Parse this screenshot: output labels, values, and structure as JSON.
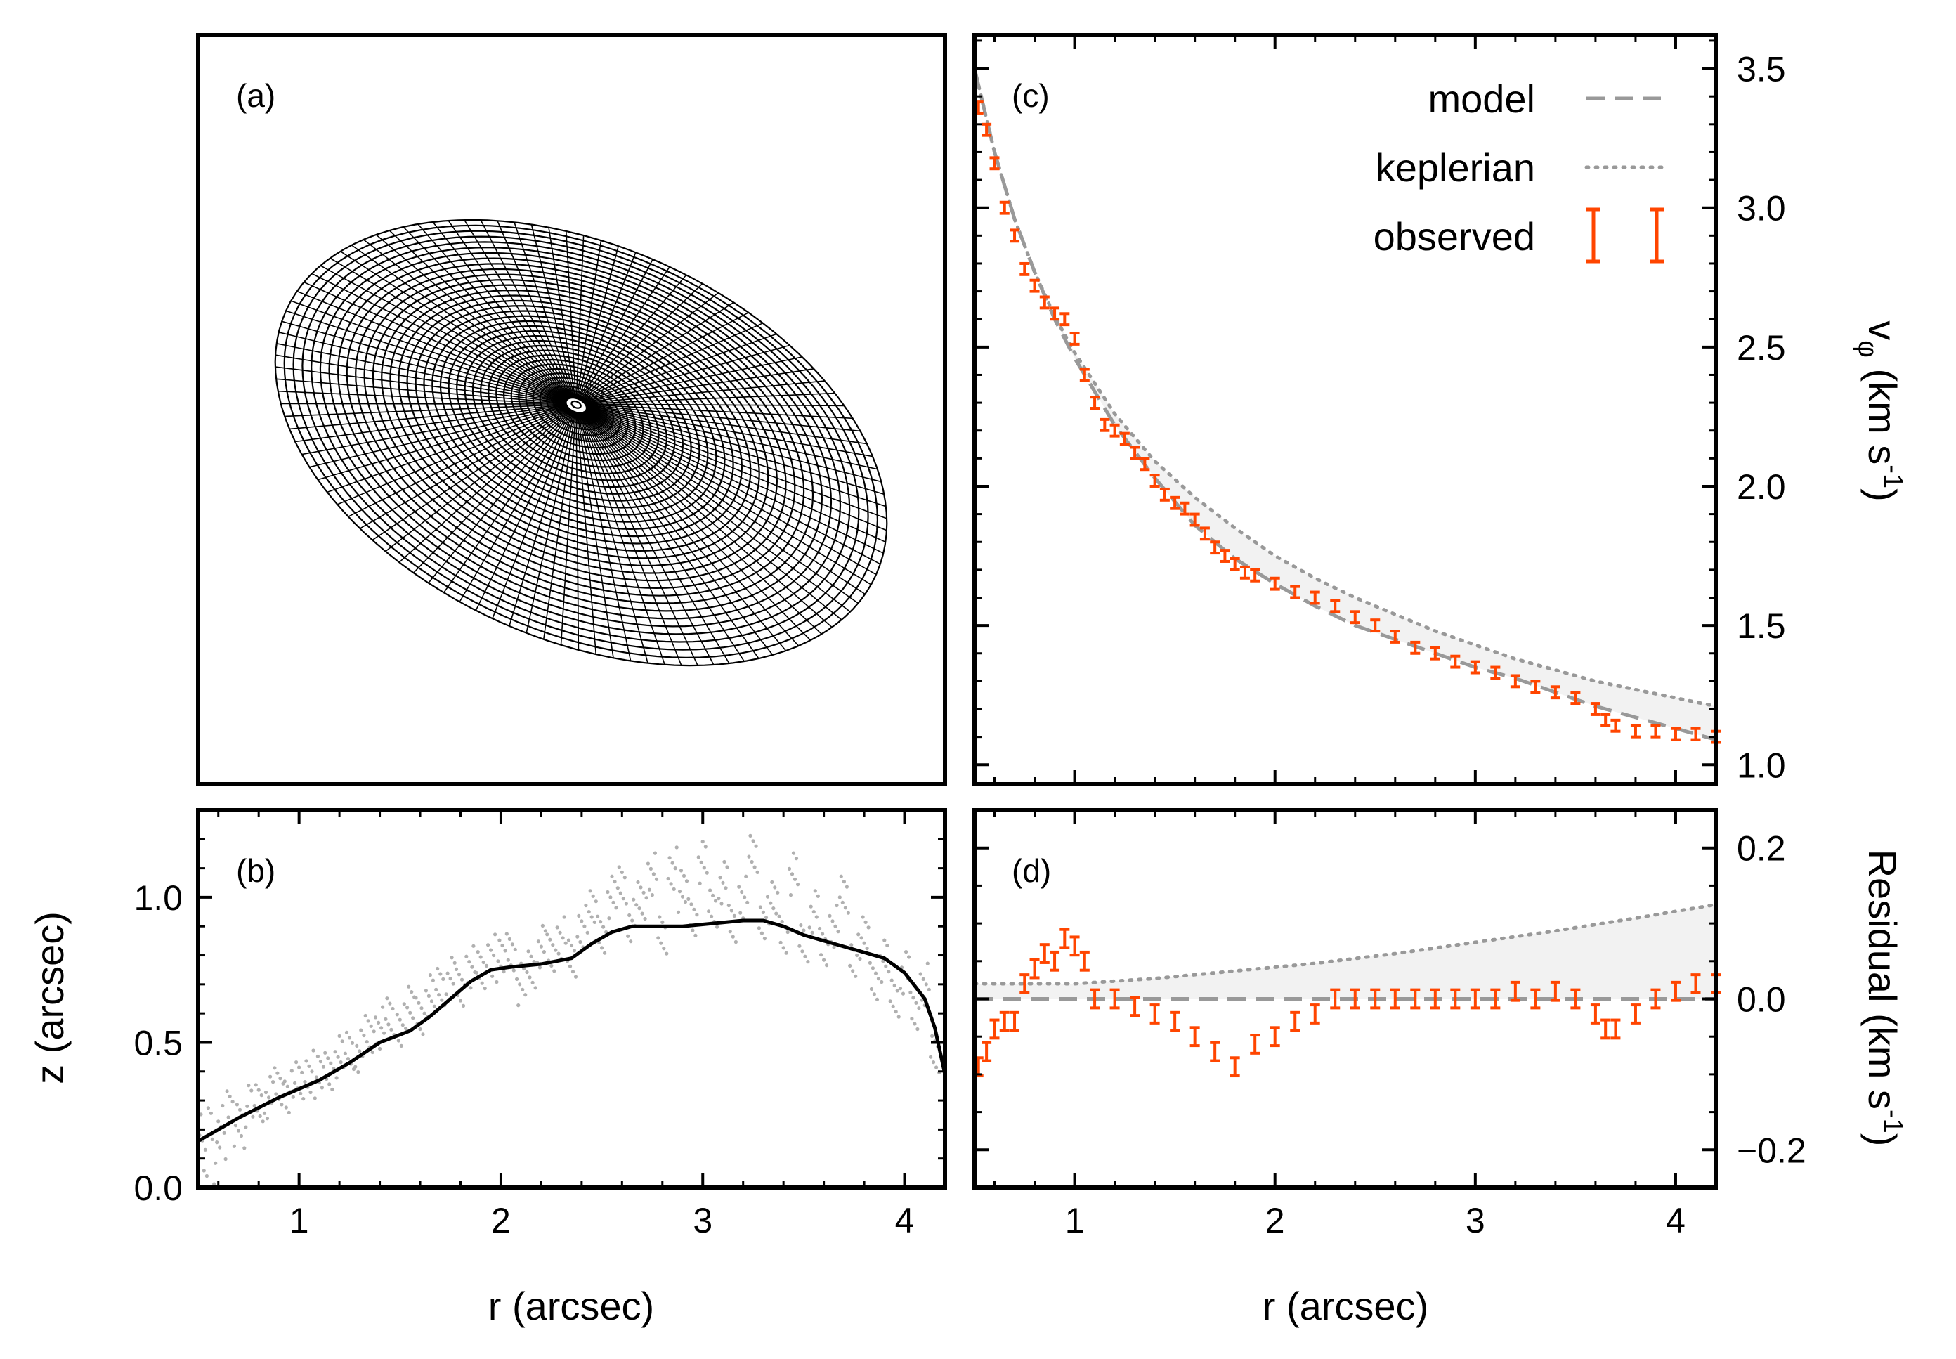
{
  "colors": {
    "observed": "#ff4500",
    "model": "#999999",
    "keplerian": "#999999",
    "points": "#b0b0b0",
    "shade": "#f2f2f2",
    "surface": "#000000"
  },
  "chart_data": [
    {
      "panel": "a",
      "type": "other",
      "tag": "(a)",
      "description_visible": "3D wireframe surface of inclined disk"
    },
    {
      "panel": "b",
      "type": "scatter",
      "tag": "(b)",
      "xlabel": "r (arcsec)",
      "ylabel": "z (arcsec)",
      "xlim": [
        0.5,
        4.2
      ],
      "ylim": [
        0.0,
        1.3
      ],
      "xticks": [
        "1",
        "2",
        "3",
        "4"
      ],
      "yticks": [
        "0.0",
        "0.5",
        "1.0"
      ],
      "series": [
        {
          "kind": "line",
          "x": [
            0.5,
            0.7,
            0.9,
            1.1,
            1.25,
            1.4,
            1.55,
            1.65,
            1.75,
            1.85,
            1.95,
            2.05,
            2.2,
            2.35,
            2.45,
            2.55,
            2.65,
            2.75,
            2.9,
            3.05,
            3.2,
            3.3,
            3.4,
            3.5,
            3.6,
            3.7,
            3.8,
            3.9,
            4.0,
            4.1,
            4.15,
            4.2
          ],
          "y": [
            0.16,
            0.24,
            0.31,
            0.37,
            0.43,
            0.5,
            0.54,
            0.59,
            0.65,
            0.71,
            0.75,
            0.76,
            0.77,
            0.79,
            0.84,
            0.88,
            0.9,
            0.9,
            0.9,
            0.91,
            0.92,
            0.92,
            0.9,
            0.87,
            0.85,
            0.83,
            0.81,
            0.79,
            0.74,
            0.65,
            0.55,
            0.39
          ]
        },
        {
          "kind": "points",
          "x": [
            0.5,
            0.55,
            0.6,
            0.65,
            0.7,
            0.75,
            0.8,
            0.85,
            0.9,
            0.95,
            1.0,
            1.05,
            1.1,
            1.15,
            1.2,
            1.25,
            1.3,
            1.35,
            1.4,
            1.45,
            1.5,
            1.55,
            1.6,
            1.65,
            1.7,
            1.75,
            1.8,
            1.85,
            1.9,
            1.95,
            2.0,
            2.05,
            2.1,
            2.15,
            2.2,
            2.25,
            2.3,
            2.35,
            2.4,
            2.45,
            2.5,
            2.55,
            2.6,
            2.65,
            2.7,
            2.75,
            2.8,
            2.85,
            2.9,
            2.95,
            3.0,
            3.05,
            3.1,
            3.15,
            3.2,
            3.25,
            3.3,
            3.35,
            3.4,
            3.45,
            3.5,
            3.55,
            3.6,
            3.65,
            3.7,
            3.75,
            3.8,
            3.85,
            3.9,
            3.95,
            4.0,
            4.05,
            4.1,
            4.15
          ],
          "y": [
            0.18,
            0.22,
            0.21,
            0.26,
            0.25,
            0.28,
            0.3,
            0.31,
            0.34,
            0.33,
            0.36,
            0.4,
            0.38,
            0.41,
            0.45,
            0.48,
            0.47,
            0.52,
            0.55,
            0.58,
            0.56,
            0.62,
            0.6,
            0.66,
            0.7,
            0.72,
            0.68,
            0.76,
            0.74,
            0.8,
            0.78,
            0.82,
            0.7,
            0.76,
            0.83,
            0.8,
            0.86,
            0.78,
            0.9,
            0.95,
            0.88,
            1.0,
            1.05,
            0.92,
            0.98,
            1.08,
            0.86,
            1.1,
            1.02,
            0.94,
            1.12,
            0.97,
            1.05,
            0.9,
            1.0,
            1.14,
            0.93,
            0.98,
            0.88,
            1.08,
            0.85,
            0.95,
            0.82,
            0.9,
            1.0,
            0.8,
            0.86,
            0.72,
            0.78,
            0.66,
            0.74,
            0.6,
            0.7,
            0.45
          ]
        }
      ]
    },
    {
      "panel": "c",
      "type": "line",
      "tag": "(c)",
      "ylabel": "v",
      "ylabel_subscript": "φ",
      "ylabel_unit": " (km s",
      "ylabel_sup": "-1",
      "ylabel_close": ")",
      "xlim": [
        0.5,
        4.2
      ],
      "ylim": [
        0.93,
        3.62
      ],
      "yticks": [
        "1.0",
        "1.5",
        "2.0",
        "2.5",
        "3.0",
        "3.5"
      ],
      "legend": {
        "position": "top-right",
        "entries": [
          "model",
          "keplerian",
          "observed"
        ]
      },
      "series": [
        {
          "name": "model",
          "style": "dashed",
          "x": [
            0.5,
            0.6,
            0.7,
            0.8,
            0.9,
            1.0,
            1.2,
            1.4,
            1.6,
            1.8,
            2.0,
            2.2,
            2.4,
            2.6,
            2.8,
            3.0,
            3.2,
            3.4,
            3.6,
            3.8,
            4.0,
            4.2
          ],
          "y": [
            3.5,
            3.2,
            2.96,
            2.77,
            2.6,
            2.46,
            2.22,
            2.03,
            1.86,
            1.74,
            1.65,
            1.57,
            1.5,
            1.45,
            1.4,
            1.35,
            1.31,
            1.26,
            1.21,
            1.17,
            1.13,
            1.09
          ]
        },
        {
          "name": "keplerian",
          "style": "dotted",
          "x": [
            0.5,
            0.6,
            0.7,
            0.8,
            0.9,
            1.0,
            1.2,
            1.4,
            1.6,
            1.8,
            2.0,
            2.2,
            2.4,
            2.6,
            2.8,
            3.0,
            3.2,
            3.4,
            3.6,
            3.8,
            4.0,
            4.2
          ],
          "y": [
            3.5,
            3.2,
            2.96,
            2.77,
            2.61,
            2.48,
            2.26,
            2.09,
            1.96,
            1.85,
            1.75,
            1.67,
            1.6,
            1.54,
            1.48,
            1.43,
            1.38,
            1.34,
            1.3,
            1.27,
            1.24,
            1.21
          ]
        },
        {
          "name": "observed",
          "style": "errorbar",
          "x": [
            0.52,
            0.56,
            0.6,
            0.65,
            0.7,
            0.75,
            0.8,
            0.85,
            0.9,
            0.95,
            1.0,
            1.05,
            1.1,
            1.15,
            1.2,
            1.25,
            1.3,
            1.35,
            1.4,
            1.45,
            1.5,
            1.55,
            1.6,
            1.65,
            1.7,
            1.75,
            1.8,
            1.85,
            1.9,
            2.0,
            2.1,
            2.2,
            2.3,
            2.4,
            2.5,
            2.6,
            2.7,
            2.8,
            2.9,
            3.0,
            3.1,
            3.2,
            3.3,
            3.4,
            3.5,
            3.6,
            3.65,
            3.7,
            3.8,
            3.9,
            4.0,
            4.1,
            4.2
          ],
          "y": [
            3.36,
            3.28,
            3.16,
            3.0,
            2.9,
            2.78,
            2.72,
            2.66,
            2.62,
            2.6,
            2.53,
            2.4,
            2.3,
            2.22,
            2.2,
            2.17,
            2.12,
            2.08,
            2.02,
            1.97,
            1.94,
            1.92,
            1.88,
            1.83,
            1.78,
            1.75,
            1.72,
            1.69,
            1.68,
            1.65,
            1.62,
            1.6,
            1.57,
            1.53,
            1.5,
            1.46,
            1.42,
            1.4,
            1.37,
            1.35,
            1.33,
            1.3,
            1.28,
            1.26,
            1.24,
            1.2,
            1.16,
            1.14,
            1.12,
            1.12,
            1.11,
            1.11,
            1.1
          ],
          "err": 0.02
        }
      ]
    },
    {
      "panel": "d",
      "type": "line",
      "tag": "(d)",
      "xlabel": "r (arcsec)",
      "ylabel": "Residual (km s",
      "ylabel_sup": "-1",
      "ylabel_close": ")",
      "xlim": [
        0.5,
        4.2
      ],
      "ylim": [
        -0.25,
        0.25
      ],
      "xticks": [
        "1",
        "2",
        "3",
        "4"
      ],
      "yticks": [
        "-0.2",
        "0.0",
        "0.2"
      ],
      "series": [
        {
          "name": "model",
          "style": "dashed",
          "x": [
            0.5,
            4.2
          ],
          "y": [
            0.0,
            0.0
          ]
        },
        {
          "name": "keplerian",
          "style": "dotted",
          "x": [
            0.5,
            0.8,
            1.0,
            1.4,
            1.8,
            2.2,
            2.6,
            3.0,
            3.4,
            3.8,
            4.2
          ],
          "y": [
            0.02,
            0.02,
            0.02,
            0.027,
            0.037,
            0.047,
            0.06,
            0.075,
            0.09,
            0.107,
            0.125
          ]
        },
        {
          "name": "observed",
          "style": "errorbar",
          "x": [
            0.52,
            0.56,
            0.6,
            0.65,
            0.7,
            0.75,
            0.8,
            0.85,
            0.9,
            0.95,
            1.0,
            1.05,
            1.1,
            1.2,
            1.3,
            1.4,
            1.5,
            1.6,
            1.7,
            1.8,
            1.9,
            2.0,
            2.1,
            2.2,
            2.3,
            2.4,
            2.5,
            2.6,
            2.7,
            2.8,
            2.9,
            3.0,
            3.1,
            3.2,
            3.3,
            3.4,
            3.5,
            3.6,
            3.65,
            3.7,
            3.8,
            3.9,
            4.0,
            4.1,
            4.2
          ],
          "y": [
            -0.09,
            -0.07,
            -0.04,
            -0.03,
            -0.03,
            0.02,
            0.04,
            0.06,
            0.05,
            0.08,
            0.07,
            0.05,
            0.0,
            0.0,
            -0.01,
            -0.02,
            -0.03,
            -0.05,
            -0.07,
            -0.09,
            -0.06,
            -0.05,
            -0.03,
            -0.02,
            0.0,
            0.0,
            0.0,
            0.0,
            0.0,
            0.0,
            0.0,
            0.0,
            0.0,
            0.01,
            0.0,
            0.01,
            0.0,
            -0.02,
            -0.04,
            -0.04,
            -0.02,
            0.0,
            0.01,
            0.02,
            0.02
          ],
          "err": 0.012
        }
      ]
    }
  ]
}
